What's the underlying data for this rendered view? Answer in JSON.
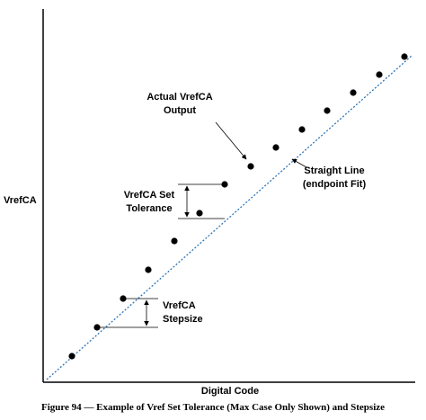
{
  "axes": {
    "y_label": "VrefCA",
    "x_label": "Digital Code"
  },
  "annotations": {
    "actual_output": [
      "Actual VrefCA",
      "Output"
    ],
    "straight_line": [
      "Straight Line",
      "(endpoint Fit)"
    ],
    "set_tolerance": [
      "VrefCA Set",
      "Tolerance"
    ],
    "stepsize": [
      "VrefCA",
      "Stepsize"
    ]
  },
  "caption": "Figure 94 — Example of Vref Set Tolerance (Max Case Only Shown) and Stepsize"
}
